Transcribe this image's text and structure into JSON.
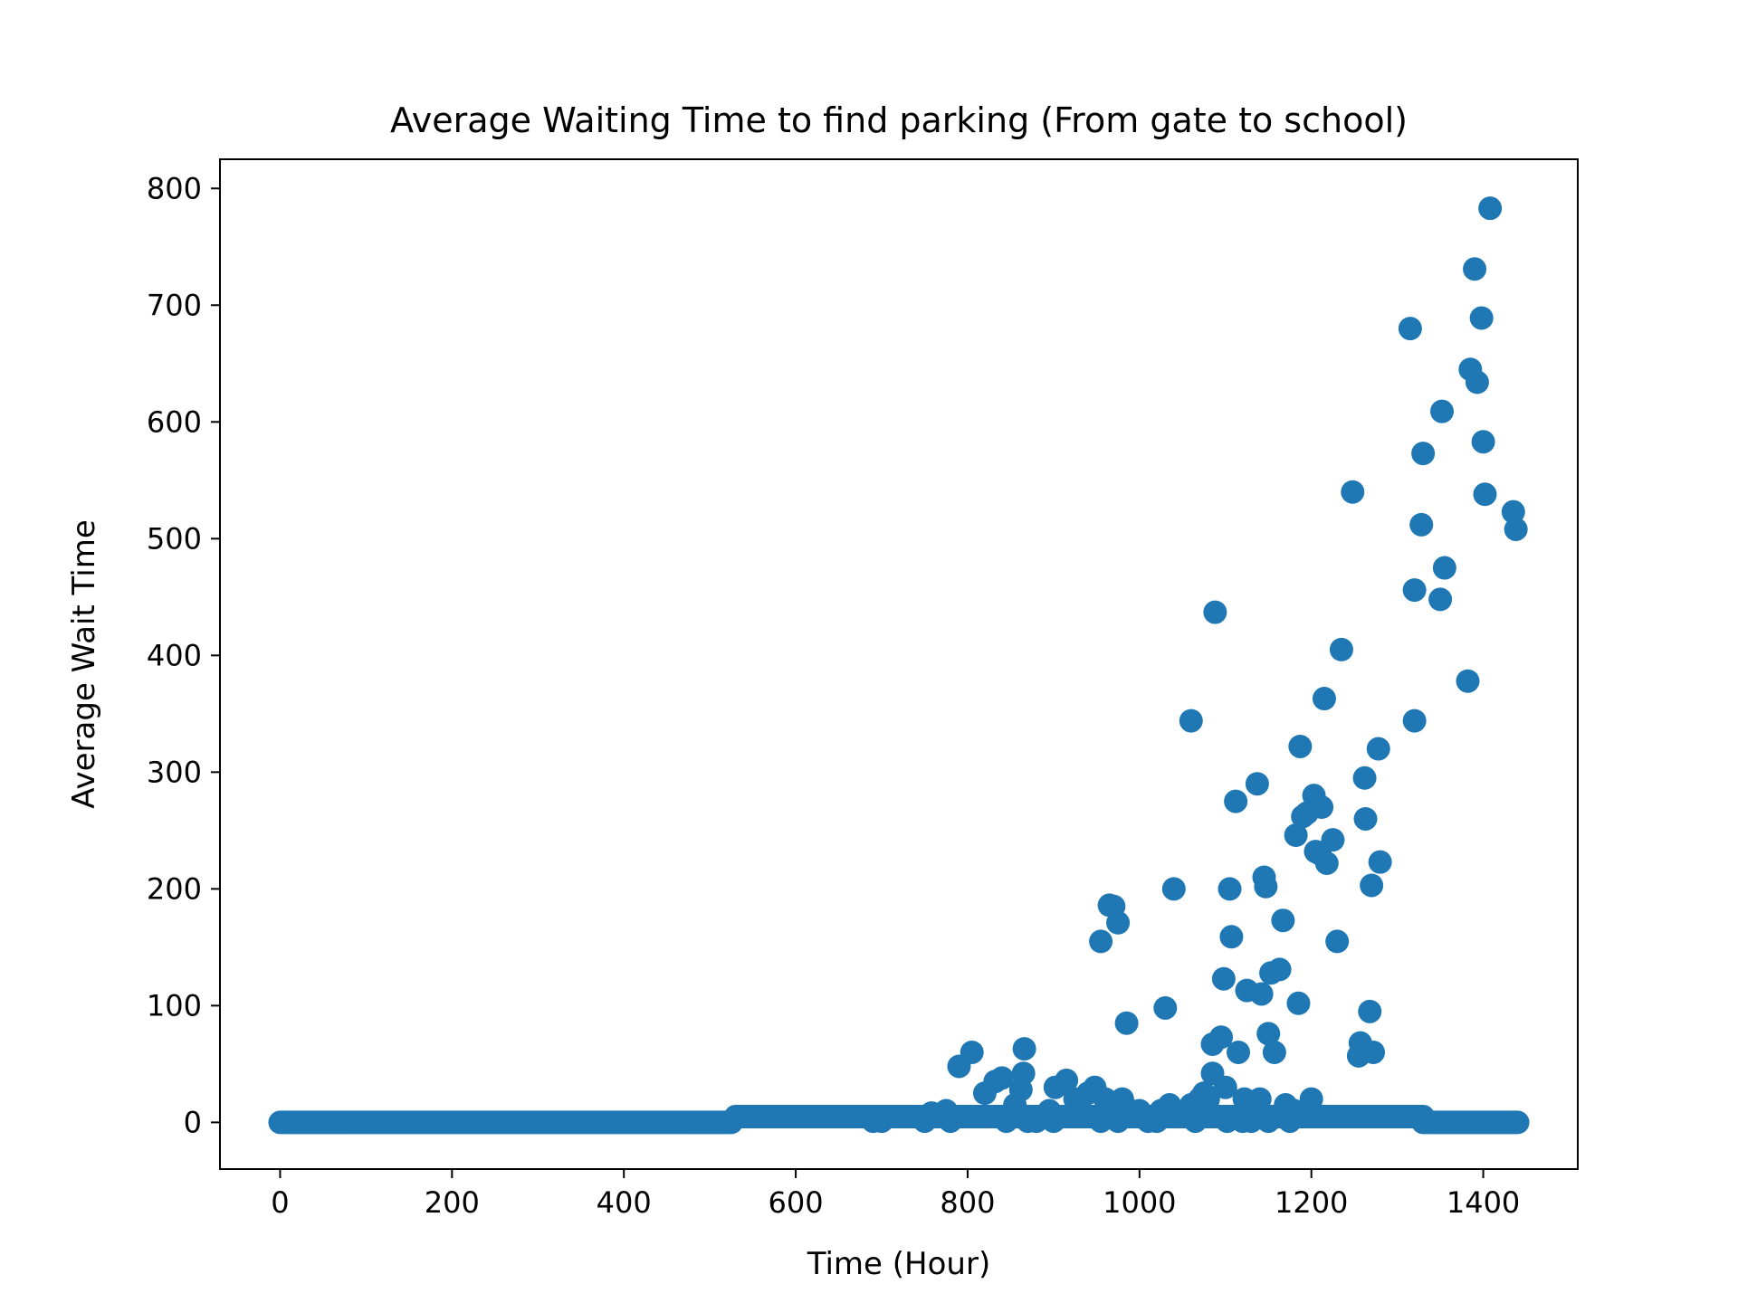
{
  "chart_data": {
    "type": "scatter",
    "title": "Average Waiting Time to find parking (From gate to school)",
    "xlabel": "Time (Hour)",
    "ylabel": "Average Wait Time",
    "xlim": [
      -70,
      1510
    ],
    "ylim": [
      -40,
      825
    ],
    "xticks": [
      0,
      200,
      400,
      600,
      800,
      1000,
      1200,
      1400
    ],
    "yticks": [
      0,
      100,
      200,
      300,
      400,
      500,
      600,
      700,
      800
    ],
    "grid": false,
    "legend": "none",
    "marker_color": "#1f77b4",
    "baseline_runs": [
      {
        "x_start": 0,
        "x_end": 525,
        "y": 0
      },
      {
        "x_start": 530,
        "x_end": 1330,
        "y": 5
      },
      {
        "x_start": 1330,
        "x_end": 1440,
        "y": 0
      }
    ],
    "points": [
      [
        690,
        1
      ],
      [
        700,
        1
      ],
      [
        750,
        1
      ],
      [
        758,
        8
      ],
      [
        775,
        10
      ],
      [
        780,
        1
      ],
      [
        790,
        48
      ],
      [
        805,
        60
      ],
      [
        820,
        25
      ],
      [
        832,
        35
      ],
      [
        840,
        38
      ],
      [
        845,
        1
      ],
      [
        855,
        15
      ],
      [
        862,
        28
      ],
      [
        865,
        42
      ],
      [
        866,
        63
      ],
      [
        870,
        1
      ],
      [
        880,
        1
      ],
      [
        895,
        10
      ],
      [
        900,
        1
      ],
      [
        902,
        30
      ],
      [
        915,
        36
      ],
      [
        925,
        20
      ],
      [
        930,
        15
      ],
      [
        940,
        25
      ],
      [
        948,
        30
      ],
      [
        955,
        1
      ],
      [
        960,
        20
      ],
      [
        955,
        155
      ],
      [
        965,
        186
      ],
      [
        970,
        185
      ],
      [
        975,
        171
      ],
      [
        975,
        1
      ],
      [
        980,
        20
      ],
      [
        985,
        85
      ],
      [
        990,
        10
      ],
      [
        1000,
        10
      ],
      [
        1010,
        1
      ],
      [
        1020,
        1
      ],
      [
        1025,
        10
      ],
      [
        1030,
        98
      ],
      [
        1035,
        15
      ],
      [
        1040,
        200
      ],
      [
        1045,
        5
      ],
      [
        1060,
        344
      ],
      [
        1060,
        15
      ],
      [
        1065,
        1
      ],
      [
        1070,
        20
      ],
      [
        1075,
        25
      ],
      [
        1080,
        20
      ],
      [
        1085,
        67
      ],
      [
        1085,
        42
      ],
      [
        1088,
        437
      ],
      [
        1095,
        73
      ],
      [
        1098,
        123
      ],
      [
        1100,
        30
      ],
      [
        1102,
        1
      ],
      [
        1105,
        200
      ],
      [
        1107,
        159
      ],
      [
        1112,
        275
      ],
      [
        1115,
        60
      ],
      [
        1120,
        1
      ],
      [
        1122,
        20
      ],
      [
        1125,
        113
      ],
      [
        1130,
        1
      ],
      [
        1137,
        290
      ],
      [
        1140,
        20
      ],
      [
        1142,
        110
      ],
      [
        1145,
        210
      ],
      [
        1147,
        202
      ],
      [
        1150,
        1
      ],
      [
        1150,
        76
      ],
      [
        1153,
        128
      ],
      [
        1157,
        60
      ],
      [
        1163,
        131
      ],
      [
        1167,
        173
      ],
      [
        1170,
        15
      ],
      [
        1175,
        1
      ],
      [
        1180,
        10
      ],
      [
        1182,
        246
      ],
      [
        1185,
        102
      ],
      [
        1187,
        322
      ],
      [
        1190,
        262
      ],
      [
        1195,
        265
      ],
      [
        1200,
        20
      ],
      [
        1203,
        280
      ],
      [
        1205,
        232
      ],
      [
        1210,
        230
      ],
      [
        1212,
        270
      ],
      [
        1215,
        363
      ],
      [
        1218,
        222
      ],
      [
        1225,
        242
      ],
      [
        1230,
        155
      ],
      [
        1235,
        405
      ],
      [
        1248,
        540
      ],
      [
        1255,
        57
      ],
      [
        1257,
        68
      ],
      [
        1262,
        295
      ],
      [
        1263,
        260
      ],
      [
        1268,
        95
      ],
      [
        1270,
        203
      ],
      [
        1272,
        60
      ],
      [
        1278,
        320
      ],
      [
        1280,
        223
      ],
      [
        1315,
        680
      ],
      [
        1320,
        344
      ],
      [
        1320,
        456
      ],
      [
        1328,
        512
      ],
      [
        1330,
        573
      ],
      [
        1350,
        448
      ],
      [
        1352,
        609
      ],
      [
        1355,
        475
      ],
      [
        1382,
        378
      ],
      [
        1385,
        645
      ],
      [
        1390,
        731
      ],
      [
        1393,
        634
      ],
      [
        1398,
        689
      ],
      [
        1400,
        583
      ],
      [
        1402,
        538
      ],
      [
        1408,
        783
      ],
      [
        1435,
        523
      ],
      [
        1438,
        508
      ]
    ]
  }
}
